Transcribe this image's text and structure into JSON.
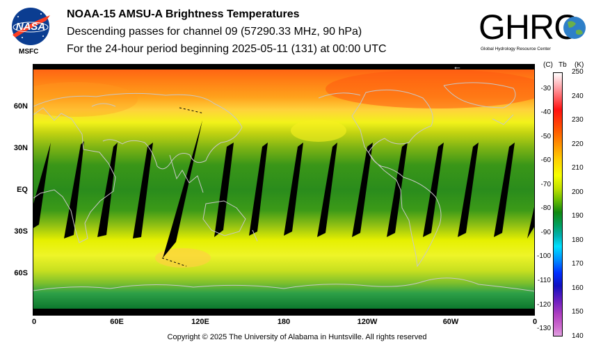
{
  "header": {
    "title": "NOAA-15 AMSU-A Brightness Temperatures",
    "subtitle": "Descending passes for channel 09 (57290.33 MHz, 90 hPa)",
    "period": "For the 24-hour period beginning 2025-05-11 (131) at 00:00 UTC"
  },
  "logos": {
    "nasa_text": "NASA",
    "msfc_text": "MSFC",
    "ghrc_text": "GHRC",
    "ghrc_subtext": "Global Hydrology Resource Center"
  },
  "map": {
    "lat_labels": [
      "60N",
      "30N",
      "EQ",
      "30S",
      "60S"
    ],
    "lon_labels": [
      "0",
      "60E",
      "120E",
      "180",
      "120W",
      "60W",
      "0"
    ],
    "arrow_symbol": "←"
  },
  "colorbar": {
    "header_c": "(C)",
    "header_tb": "Tb",
    "header_k": "(K)",
    "celsius_labels": [
      "-30",
      "-40",
      "-50",
      "-60",
      "-70",
      "-80",
      "-90",
      "-100",
      "-110",
      "-120",
      "-130"
    ],
    "kelvin_labels": [
      "250",
      "240",
      "230",
      "220",
      "210",
      "200",
      "190",
      "180",
      "170",
      "160",
      "150",
      "140"
    ],
    "kelvin_range": [
      140,
      250
    ]
  },
  "footer": {
    "copyright": "Copyright © 2025 The University of Alabama in Huntsville.  All rights reserved"
  },
  "colors": {
    "polar_orange": "#ff8a1a",
    "midlat_yellow": "#e6f000",
    "tropic_green": "#3c9a1c",
    "coastline": "#c8c8c8"
  }
}
